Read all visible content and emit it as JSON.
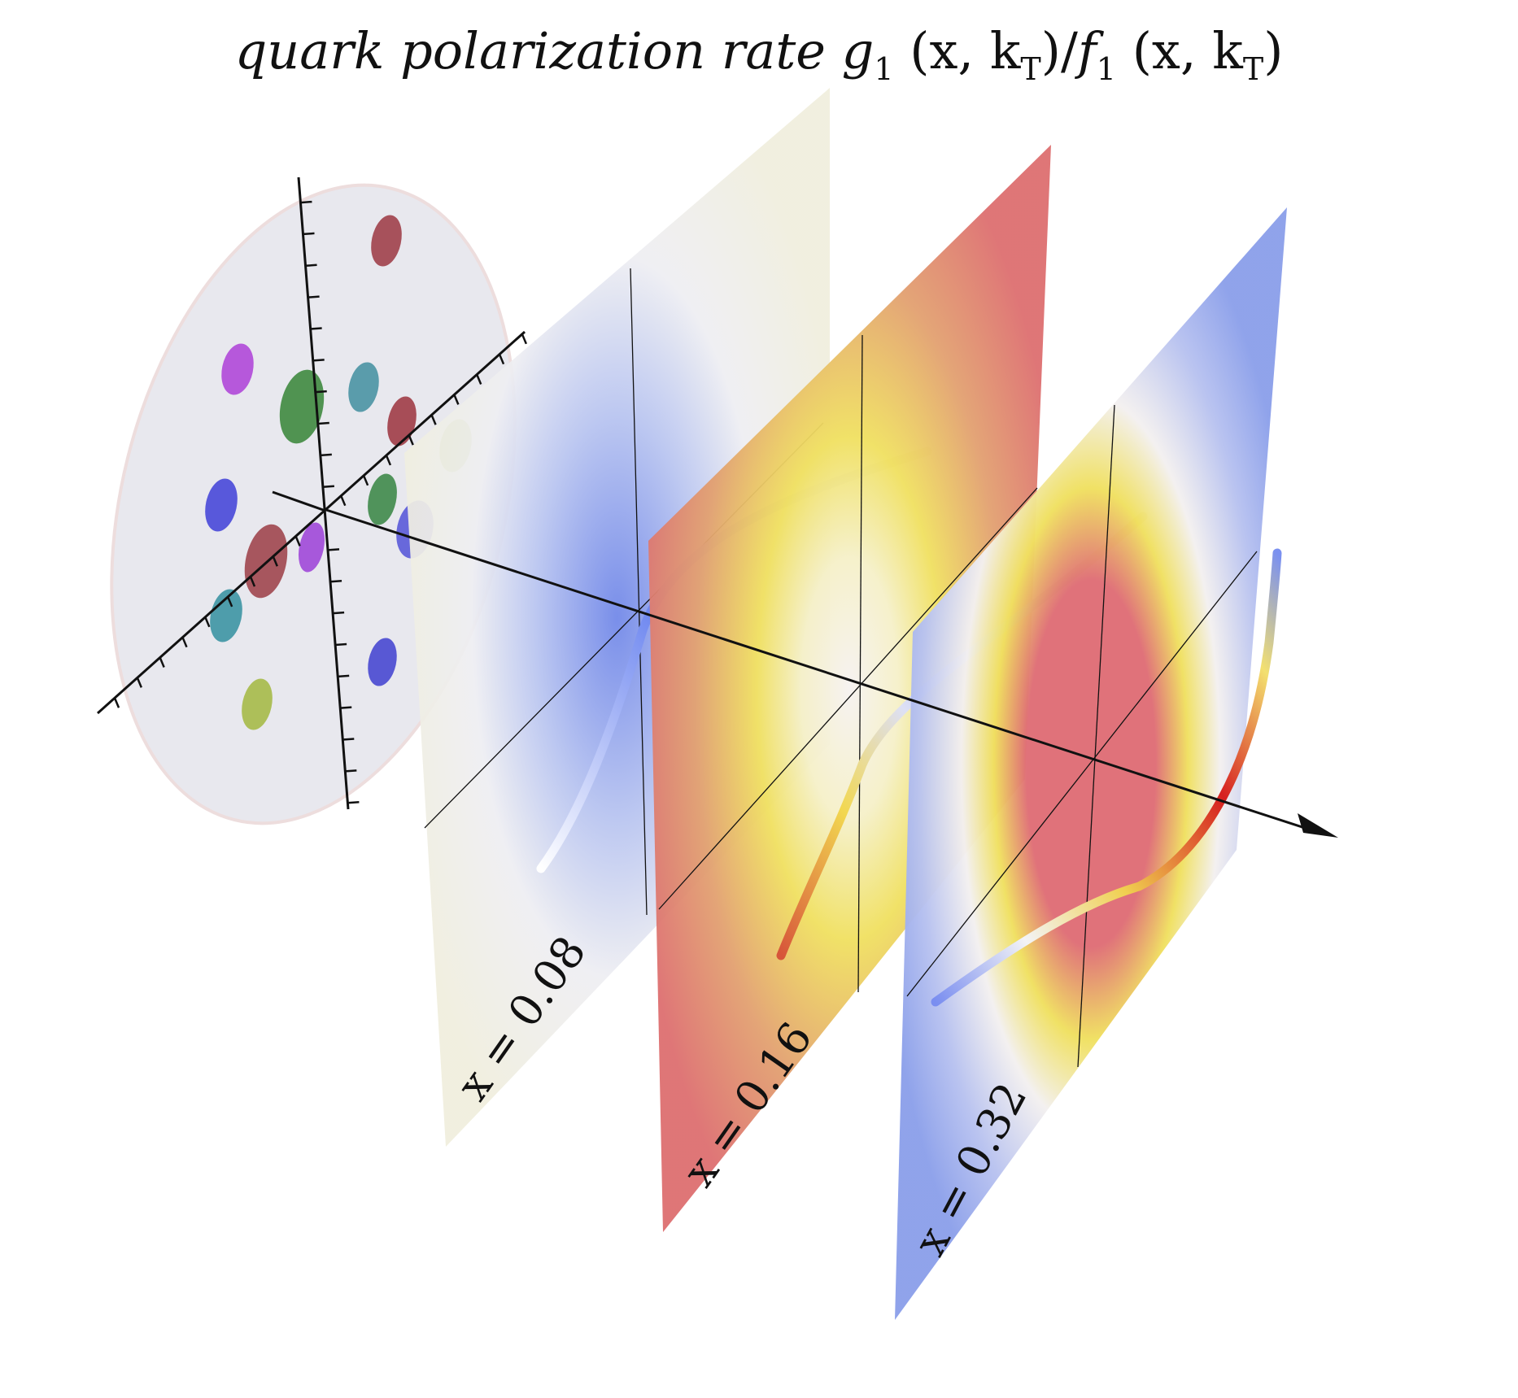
{
  "title": {
    "prefix": "quark polarization rate ",
    "g": "g",
    "g_sub": "1",
    "args1": "(x, k",
    "T1": "T",
    "slash": ")/",
    "f": "f",
    "f_sub": "1",
    "args2": "(x, k",
    "T2": "T",
    "close": ")"
  },
  "slices": [
    {
      "label": "x = 0.08",
      "edge_color": "#f0eedd",
      "center_color": "#6f86e8"
    },
    {
      "label": "x = 0.16",
      "edge_color": "#dd6f70",
      "center_color": "#f5f2f0"
    },
    {
      "label": "x = 0.32",
      "edge_color": "#8ca0ea",
      "center_color": "#df6e76"
    }
  ],
  "quark_dots": [
    {
      "color": "#a0404a"
    },
    {
      "color": "#b048d8"
    },
    {
      "color": "#3f8a3f"
    },
    {
      "color": "#4a93a3"
    },
    {
      "color": "#a03c46"
    },
    {
      "color": "#a8c25e"
    },
    {
      "color": "#4848d8"
    },
    {
      "color": "#a0464e"
    },
    {
      "color": "#a048d8"
    },
    {
      "color": "#3f8a4a"
    },
    {
      "color": "#5a5ad8"
    },
    {
      "color": "#3d95a3"
    },
    {
      "color": "#4848d0"
    },
    {
      "color": "#a6ba48"
    }
  ]
}
